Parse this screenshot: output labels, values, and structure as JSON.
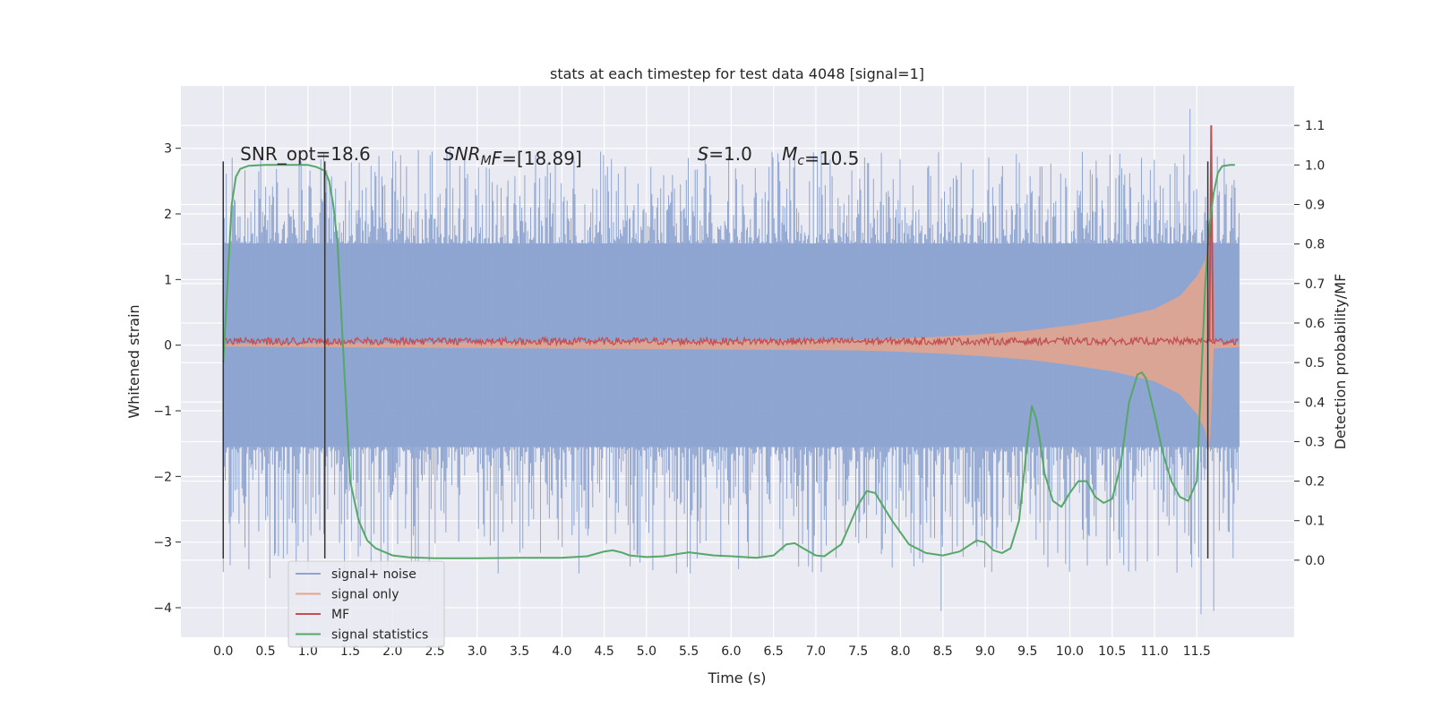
{
  "chart_data": {
    "type": "line",
    "title": "stats at each timestep for test data 4048 [signal=1]",
    "xlabel": "Time (s)",
    "ylabel": "Whitened strain",
    "y2label": "Detection probability/MF",
    "xlim": [
      -0.5,
      12.65
    ],
    "ylim": [
      -4.45,
      3.95
    ],
    "y2lim": [
      -0.195,
      1.2
    ],
    "grid": true,
    "legend_position": "lower-left",
    "x_ticks": [
      "0.0",
      "0.5",
      "1.0",
      "1.5",
      "2.0",
      "2.5",
      "3.0",
      "3.5",
      "4.0",
      "4.5",
      "5.0",
      "5.5",
      "6.0",
      "6.5",
      "7.0",
      "7.5",
      "8.0",
      "8.5",
      "9.0",
      "9.5",
      "10.0",
      "10.5",
      "11.0",
      "11.5"
    ],
    "y_ticks": [
      3,
      2,
      1,
      0,
      -1,
      -2,
      -3,
      -4
    ],
    "y_tick_labels": [
      "3",
      "2",
      "1",
      "0",
      "−1",
      "−2",
      "−3",
      "−4"
    ],
    "y2_ticks": [
      "0.0",
      "0.1",
      "0.2",
      "0.3",
      "0.4",
      "0.5",
      "0.6",
      "0.7",
      "0.8",
      "0.9",
      "1.0",
      "1.1"
    ],
    "annotations": [
      {
        "segments": [
          {
            "text": "SNR_opt=18.6"
          }
        ],
        "x": 0.2,
        "y2": 1.012
      },
      {
        "segments": [
          {
            "text": "SNR",
            "italic": true
          },
          {
            "text": "M",
            "italic": true,
            "sub": true
          },
          {
            "text": "F",
            "italic": true
          },
          {
            "text": "=[18.89]"
          }
        ],
        "x": 2.6,
        "y2": 1.012
      },
      {
        "segments": [
          {
            "text": "S",
            "italic": true
          },
          {
            "text": "=1.0"
          }
        ],
        "x": 5.6,
        "y2": 1.012
      },
      {
        "segments": [
          {
            "text": "M",
            "italic": true
          },
          {
            "text": "c",
            "italic": true,
            "sub": true
          },
          {
            "text": "=10.5"
          }
        ],
        "x": 6.6,
        "y2": 1.012
      }
    ],
    "vertical_markers": [
      {
        "x": 0.0,
        "y_range": [
          -3.25,
          2.8
        ],
        "color": "#333333"
      },
      {
        "x": 1.2,
        "y_range": [
          -3.25,
          2.8
        ],
        "color": "#333333"
      },
      {
        "x": 11.63,
        "y_range": [
          -3.25,
          2.8
        ],
        "color": "#333333"
      }
    ],
    "series": [
      {
        "name": "signal+ noise",
        "axis": "left",
        "color": "#8FA5D1",
        "kind": "noise",
        "x_range": [
          0.0,
          12.0
        ],
        "band": 1.55,
        "spike_max": 3.6,
        "spike_min": -4.1,
        "notable_peaks": [
          {
            "x": 11.42,
            "y": 3.6
          },
          {
            "x": 11.55,
            "y": -4.1
          },
          {
            "x": 11.7,
            "y": -4.05
          },
          {
            "x": 8.48,
            "y": -4.05
          },
          {
            "x": 0.55,
            "y": -3.55
          }
        ]
      },
      {
        "name": "signal only",
        "axis": "left",
        "color": "#E8A48A",
        "kind": "chirp",
        "x": [
          0.0,
          7.5,
          8.0,
          8.5,
          9.0,
          9.5,
          10.0,
          10.5,
          11.0,
          11.3,
          11.5,
          11.6,
          11.65,
          11.7,
          12.0
        ],
        "amplitude": [
          0.02,
          0.08,
          0.1,
          0.13,
          0.17,
          0.22,
          0.3,
          0.4,
          0.55,
          0.75,
          1.05,
          1.3,
          1.7,
          0.05,
          0.03
        ]
      },
      {
        "name": "MF",
        "axis": "left",
        "color": "#C44E52",
        "kind": "mf",
        "base": 0.06,
        "jitter": 0.055,
        "x_range": [
          0.0,
          12.0
        ],
        "peak": {
          "x": 11.67,
          "y": 3.35
        }
      },
      {
        "name": "signal statistics",
        "axis": "right",
        "color": "#55A868",
        "kind": "line",
        "x": [
          0.0,
          0.05,
          0.1,
          0.15,
          0.2,
          0.3,
          0.5,
          0.8,
          1.0,
          1.1,
          1.2,
          1.25,
          1.3,
          1.35,
          1.4,
          1.45,
          1.5,
          1.6,
          1.7,
          1.8,
          2.0,
          2.2,
          2.5,
          3.0,
          3.5,
          4.0,
          4.3,
          4.5,
          4.6,
          4.7,
          4.8,
          5.0,
          5.2,
          5.5,
          5.8,
          6.0,
          6.3,
          6.5,
          6.65,
          6.75,
          6.85,
          7.0,
          7.1,
          7.3,
          7.5,
          7.6,
          7.7,
          7.9,
          8.1,
          8.3,
          8.5,
          8.7,
          8.9,
          9.0,
          9.1,
          9.2,
          9.3,
          9.4,
          9.5,
          9.55,
          9.6,
          9.65,
          9.7,
          9.8,
          9.9,
          10.0,
          10.1,
          10.2,
          10.3,
          10.4,
          10.5,
          10.6,
          10.7,
          10.8,
          10.85,
          10.9,
          11.0,
          11.1,
          11.2,
          11.3,
          11.4,
          11.5,
          11.55,
          11.6,
          11.65,
          11.7,
          11.75,
          11.8,
          11.9,
          11.95
        ],
        "y": [
          0.5,
          0.7,
          0.9,
          0.97,
          0.99,
          0.998,
          1.0,
          1.0,
          1.0,
          0.995,
          0.985,
          0.96,
          0.9,
          0.8,
          0.6,
          0.4,
          0.2,
          0.1,
          0.05,
          0.03,
          0.012,
          0.007,
          0.005,
          0.005,
          0.006,
          0.006,
          0.01,
          0.022,
          0.025,
          0.02,
          0.012,
          0.008,
          0.01,
          0.02,
          0.012,
          0.01,
          0.006,
          0.012,
          0.04,
          0.043,
          0.03,
          0.012,
          0.01,
          0.04,
          0.14,
          0.175,
          0.17,
          0.1,
          0.04,
          0.018,
          0.012,
          0.022,
          0.05,
          0.045,
          0.025,
          0.018,
          0.03,
          0.1,
          0.3,
          0.39,
          0.36,
          0.3,
          0.22,
          0.15,
          0.135,
          0.17,
          0.2,
          0.2,
          0.16,
          0.145,
          0.155,
          0.24,
          0.4,
          0.47,
          0.475,
          0.46,
          0.37,
          0.27,
          0.2,
          0.16,
          0.15,
          0.2,
          0.45,
          0.7,
          0.85,
          0.93,
          0.98,
          0.997,
          1.0,
          1.0
        ]
      }
    ]
  }
}
